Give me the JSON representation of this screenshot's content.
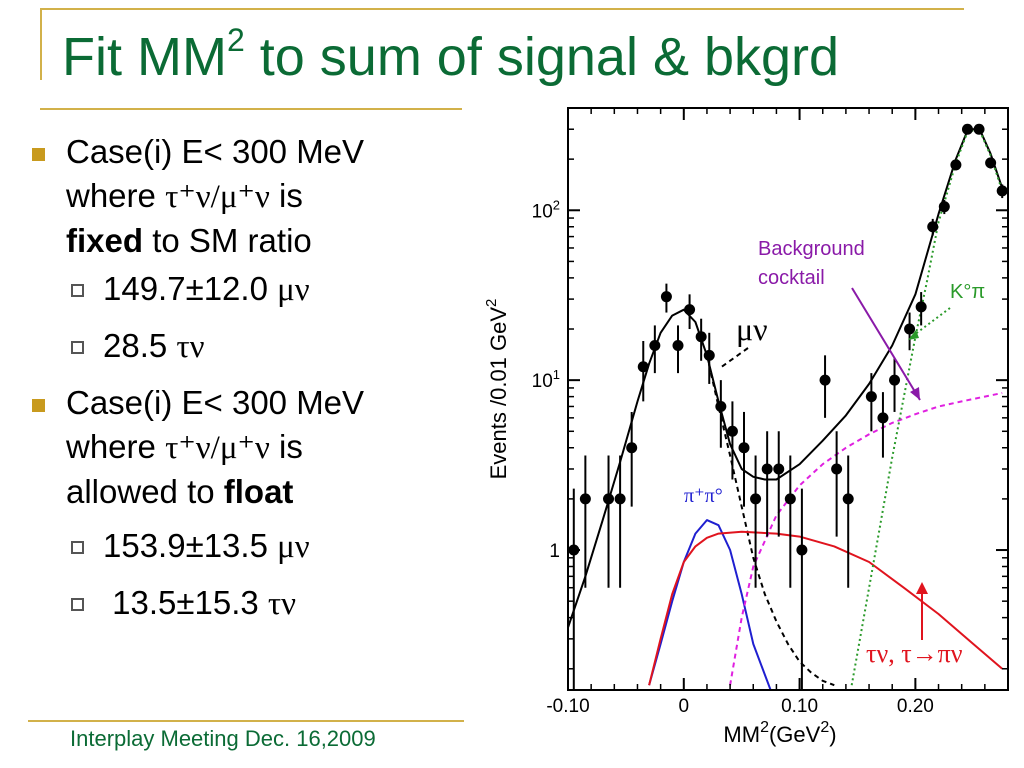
{
  "slide": {
    "title_main": "Fit MM",
    "title_sup": "2",
    "title_rest": " to sum of signal & bkgrd",
    "footer": "Interplay Meeting Dec. 16,2009"
  },
  "bullets": {
    "case1": {
      "l1": "Case(i) E< 300 MeV",
      "l2_a": "where ",
      "l2_greek": "τ⁺ν/μ⁺ν",
      "l2_b": " is",
      "l3_bold": "fixed",
      "l3_rest": " to SM ratio",
      "sub1_num": "149.7±12.0 ",
      "sub1_greek": "μν",
      "sub2_num": "28.5 ",
      "sub2_greek": "τν"
    },
    "case2": {
      "l1": "Case(i) E< 300 MeV",
      "l2_a": "where ",
      "l2_greek": "τ⁺ν/μ⁺ν",
      "l2_b": " is",
      "l3_rest": "allowed to ",
      "l3_bold": "float",
      "sub1_num": "153.9±13.5 ",
      "sub1_greek": "μν",
      "sub2_num": " 13.5±15.3 ",
      "sub2_greek": "τν"
    }
  },
  "colors": {
    "title": "#0b6b35",
    "bullet": "#c89a1e",
    "accent_line": "#d2b14a",
    "data": "#000000",
    "total_fit": "#000000",
    "mu_nu": "#000000",
    "pi_pi0": "#1f1fd0",
    "tau_nu": "#e0141e",
    "background": "#e020e0",
    "k0_pi": "#2a9a2a",
    "annot_bg": "#8a1aa8"
  },
  "chart_data": {
    "type": "scatter",
    "xlabel_main": "MM",
    "xlabel_sup1": "2",
    "xlabel_unit": "(GeV",
    "xlabel_sup2": "2",
    "xlabel_close": ")",
    "ylabel_main": "Events /0.01 GeV",
    "ylabel_sup": "2",
    "xlim": [
      -0.1,
      0.28
    ],
    "ylim": [
      0.15,
      400
    ],
    "yscale": "log",
    "xticks": [
      {
        "v": -0.1,
        "label": "-0.10"
      },
      {
        "v": 0.0,
        "label": "0"
      },
      {
        "v": 0.1,
        "label": "0.10"
      },
      {
        "v": 0.2,
        "label": "0.20"
      }
    ],
    "yticks": [
      {
        "v": 1,
        "label": "1",
        "sup": ""
      },
      {
        "v": 10,
        "label": "10",
        "sup": "1"
      },
      {
        "v": 100,
        "label": "10",
        "sup": "2"
      }
    ],
    "points": [
      {
        "x": -0.095,
        "y": 1.0,
        "lo": 0.15,
        "hi": 2.3
      },
      {
        "x": -0.085,
        "y": 2.0,
        "lo": 0.6,
        "hi": 3.6
      },
      {
        "x": -0.065,
        "y": 2.0,
        "lo": 0.6,
        "hi": 3.6
      },
      {
        "x": -0.055,
        "y": 2.0,
        "lo": 0.6,
        "hi": 3.6
      },
      {
        "x": -0.045,
        "y": 4.0,
        "lo": 1.8,
        "hi": 6.5
      },
      {
        "x": -0.035,
        "y": 12.0,
        "lo": 7.5,
        "hi": 17.0
      },
      {
        "x": -0.025,
        "y": 16.0,
        "lo": 11.0,
        "hi": 21.0
      },
      {
        "x": -0.015,
        "y": 31.0,
        "lo": 25.0,
        "hi": 37.0
      },
      {
        "x": -0.005,
        "y": 16.0,
        "lo": 11.0,
        "hi": 21.0
      },
      {
        "x": 0.005,
        "y": 26.0,
        "lo": 20.0,
        "hi": 32.0
      },
      {
        "x": 0.015,
        "y": 18.0,
        "lo": 13.0,
        "hi": 23.0
      },
      {
        "x": 0.022,
        "y": 14.0,
        "lo": 9.5,
        "hi": 19.0
      },
      {
        "x": 0.032,
        "y": 7.0,
        "lo": 4.0,
        "hi": 10.0
      },
      {
        "x": 0.042,
        "y": 5.0,
        "lo": 2.6,
        "hi": 7.5
      },
      {
        "x": 0.052,
        "y": 4.0,
        "lo": 1.8,
        "hi": 6.5
      },
      {
        "x": 0.062,
        "y": 2.0,
        "lo": 0.6,
        "hi": 3.6
      },
      {
        "x": 0.072,
        "y": 3.0,
        "lo": 1.2,
        "hi": 5.0
      },
      {
        "x": 0.082,
        "y": 3.0,
        "lo": 1.2,
        "hi": 5.0
      },
      {
        "x": 0.092,
        "y": 2.0,
        "lo": 0.6,
        "hi": 3.6
      },
      {
        "x": 0.102,
        "y": 1.0,
        "lo": 0.15,
        "hi": 2.3
      },
      {
        "x": 0.122,
        "y": 10.0,
        "lo": 6.0,
        "hi": 14.0
      },
      {
        "x": 0.132,
        "y": 3.0,
        "lo": 1.2,
        "hi": 5.0
      },
      {
        "x": 0.142,
        "y": 2.0,
        "lo": 0.6,
        "hi": 3.6
      },
      {
        "x": 0.162,
        "y": 8.0,
        "lo": 5.0,
        "hi": 11.0
      },
      {
        "x": 0.172,
        "y": 6.0,
        "lo": 3.5,
        "hi": 8.5
      },
      {
        "x": 0.182,
        "y": 10.0,
        "lo": 6.5,
        "hi": 13.5
      },
      {
        "x": 0.195,
        "y": 20.0,
        "lo": 15.0,
        "hi": 25.0
      },
      {
        "x": 0.205,
        "y": 27.0,
        "lo": 21.0,
        "hi": 33.0
      },
      {
        "x": 0.215,
        "y": 80.0,
        "lo": 71.0,
        "hi": 89.0
      },
      {
        "x": 0.225,
        "y": 105.0,
        "lo": 95.0,
        "hi": 115.0
      },
      {
        "x": 0.235,
        "y": 185.0,
        "lo": 172.0,
        "hi": 198.0
      },
      {
        "x": 0.245,
        "y": 300.0,
        "lo": 283.0,
        "hi": 317.0
      },
      {
        "x": 0.255,
        "y": 300.0,
        "lo": 283.0,
        "hi": 317.0
      },
      {
        "x": 0.265,
        "y": 190.0,
        "lo": 176.0,
        "hi": 204.0
      },
      {
        "x": 0.275,
        "y": 130.0,
        "lo": 118.0,
        "hi": 142.0
      }
    ],
    "curves": [
      {
        "id": "total",
        "style": "solid",
        "color": "#000000",
        "x": [
          -0.1,
          -0.085,
          -0.07,
          -0.055,
          -0.04,
          -0.03,
          -0.02,
          -0.01,
          0.0,
          0.01,
          0.02,
          0.03,
          0.04,
          0.05,
          0.06,
          0.07,
          0.08,
          0.1,
          0.12,
          0.14,
          0.16,
          0.18,
          0.2,
          0.22,
          0.235,
          0.245,
          0.255,
          0.265,
          0.275
        ],
        "y": [
          0.35,
          0.7,
          1.5,
          3.3,
          7.5,
          12.5,
          19.0,
          24.0,
          26.0,
          22.0,
          14.0,
          7.5,
          4.2,
          3.0,
          2.7,
          2.6,
          2.6,
          3.2,
          4.4,
          6.2,
          9.5,
          16.0,
          32.0,
          95.0,
          200.0,
          295.0,
          305.0,
          215.0,
          135.0
        ]
      },
      {
        "id": "mu_nu",
        "style": "dashed",
        "color": "#000000",
        "x": [
          0.02,
          0.03,
          0.04,
          0.05,
          0.06,
          0.07,
          0.08,
          0.09,
          0.1,
          0.11,
          0.12,
          0.13
        ],
        "y": [
          14.0,
          7.0,
          3.6,
          1.8,
          0.9,
          0.55,
          0.38,
          0.28,
          0.22,
          0.19,
          0.17,
          0.16
        ]
      },
      {
        "id": "pi_pi0",
        "style": "solid",
        "color": "#1f1fd0",
        "x": [
          -0.03,
          -0.02,
          -0.01,
          0.0,
          0.01,
          0.02,
          0.03,
          0.04,
          0.05,
          0.06,
          0.075
        ],
        "y": [
          0.16,
          0.28,
          0.5,
          0.85,
          1.25,
          1.5,
          1.4,
          1.0,
          0.55,
          0.28,
          0.15
        ]
      },
      {
        "id": "tau_nu",
        "style": "solid",
        "color": "#e0141e",
        "x": [
          -0.03,
          -0.02,
          -0.01,
          0.0,
          0.01,
          0.02,
          0.03,
          0.05,
          0.08,
          0.1,
          0.13,
          0.16,
          0.19,
          0.22,
          0.25,
          0.275
        ],
        "y": [
          0.16,
          0.3,
          0.55,
          0.85,
          1.05,
          1.18,
          1.25,
          1.28,
          1.25,
          1.2,
          1.05,
          0.85,
          0.6,
          0.42,
          0.28,
          0.2
        ]
      },
      {
        "id": "background",
        "style": "dashed",
        "color": "#e020e0",
        "x": [
          0.04,
          0.05,
          0.06,
          0.08,
          0.1,
          0.12,
          0.14,
          0.16,
          0.18,
          0.2,
          0.22,
          0.24,
          0.26,
          0.275
        ],
        "y": [
          0.16,
          0.4,
          0.8,
          1.6,
          2.4,
          3.2,
          4.0,
          4.8,
          5.6,
          6.3,
          7.0,
          7.5,
          8.0,
          8.4
        ]
      },
      {
        "id": "k0_pi",
        "style": "dotted",
        "color": "#2a9a2a",
        "x": [
          0.145,
          0.16,
          0.18,
          0.2,
          0.21,
          0.22,
          0.235,
          0.245,
          0.255,
          0.265,
          0.275
        ],
        "y": [
          0.16,
          0.6,
          3.5,
          18.0,
          38.0,
          85.0,
          190.0,
          290.0,
          300.0,
          210.0,
          130.0
        ]
      }
    ],
    "annotations": {
      "mu_nu": "μν",
      "pi_pi0": "π⁺π°",
      "bg_line1": "Background",
      "bg_line2": "cocktail",
      "k0pi": "K°π",
      "tau": "τν, τ→πν"
    }
  }
}
